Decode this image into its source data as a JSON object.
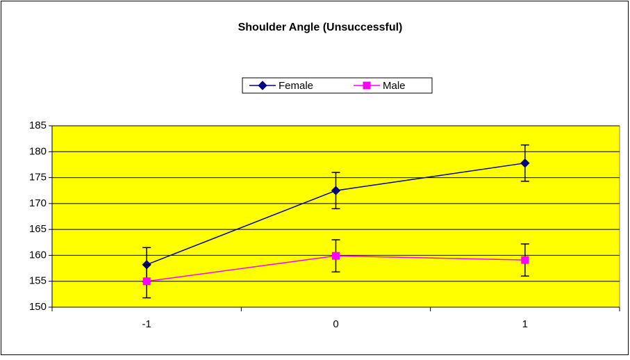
{
  "chart_data": {
    "type": "line",
    "title": "Shoulder Angle (Unsuccessful)",
    "categories": [
      "-1",
      "0",
      "1"
    ],
    "series": [
      {
        "name": "Female",
        "color": "#000080",
        "marker": "diamond",
        "values": [
          158.2,
          172.5,
          177.8
        ],
        "errors": [
          3.3,
          3.5,
          3.5
        ]
      },
      {
        "name": "Male",
        "color": "#ff00ff",
        "marker": "square",
        "values": [
          155.0,
          159.9,
          159.1
        ],
        "errors": [
          3.2,
          3.1,
          3.1
        ]
      }
    ],
    "ylim": [
      150,
      185
    ],
    "yticks": [
      150,
      155,
      160,
      165,
      170,
      175,
      180,
      185
    ],
    "grid": true,
    "legend": "top",
    "plot_background": "#ffff00"
  }
}
